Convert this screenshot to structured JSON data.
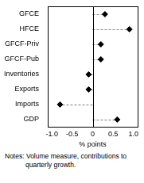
{
  "chart_data": {
    "type": "scatter",
    "orientation": "horizontal",
    "categories": [
      "GFCE",
      "HFCE",
      "GFCF-Priv",
      "GFCF-Pub",
      "Inventories",
      "Exports",
      "Imports",
      "GDP"
    ],
    "values": [
      0.3,
      0.9,
      0.2,
      0.2,
      -0.1,
      -0.1,
      -0.8,
      0.6
    ],
    "color": "#000000",
    "marker": "diamond",
    "line_style": "dashed",
    "x_label": "% points",
    "xlim": [
      -1.1,
      1.1
    ],
    "xticks": [
      {
        "value": -1.0,
        "label": "-1.0"
      },
      {
        "value": -0.5,
        "label": "-0.5"
      },
      0,
      0.5,
      {
        "value": 1.0,
        "label": "1.0"
      }
    ],
    "grid": false,
    "notes": "Notes: Volume measure, contributions to quarterly growth."
  }
}
